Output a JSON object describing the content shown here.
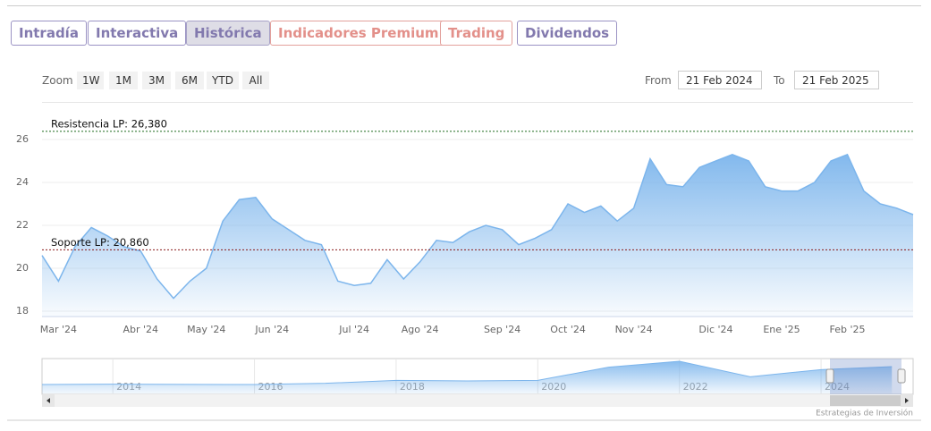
{
  "tabs": [
    "Intradía",
    "Interactiva",
    "Histórica",
    "Indicadores Premium",
    "Trading",
    "Dividendos"
  ],
  "zoom": {
    "label": "Zoom",
    "buttons": [
      "1W",
      "1M",
      "3M",
      "6M",
      "YTD",
      "All"
    ]
  },
  "range": {
    "from_label": "From",
    "from": "21 Feb 2024",
    "to_label": "To",
    "to": "21 Feb 2025"
  },
  "chart_data": {
    "type": "area",
    "color": "#7cb5ec",
    "categories": [
      null,
      "Mar '24",
      null,
      null,
      null,
      null,
      "Abr '24",
      null,
      null,
      null,
      "May '24",
      null,
      null,
      null,
      "Jun '24",
      null,
      null,
      null,
      null,
      "Jul '24",
      null,
      null,
      null,
      "Ago '24",
      null,
      null,
      null,
      null,
      "Sep '24",
      null,
      null,
      null,
      "Oct '24",
      null,
      null,
      null,
      "Nov '24",
      null,
      null,
      null,
      null,
      "Dic '24",
      null,
      null,
      null,
      "Ene '25",
      null,
      null,
      null,
      "Feb '25",
      null,
      null,
      null,
      null
    ],
    "values": [
      20.6,
      19.4,
      21.0,
      21.9,
      21.5,
      21.0,
      20.8,
      19.5,
      18.6,
      19.4,
      20.0,
      22.2,
      23.2,
      23.3,
      22.3,
      21.8,
      21.3,
      21.1,
      19.4,
      19.2,
      19.3,
      20.4,
      19.5,
      20.3,
      21.3,
      21.2,
      21.7,
      22.0,
      21.8,
      21.1,
      21.4,
      21.8,
      23.0,
      22.6,
      22.9,
      22.2,
      22.8,
      25.1,
      23.9,
      23.8,
      24.7,
      25.0,
      25.3,
      25.0,
      23.8,
      23.6,
      23.6,
      24.0,
      25.0,
      25.3,
      23.6,
      23.0,
      22.8,
      22.5
    ],
    "ylim": [
      17.75,
      27.5
    ],
    "yticks": [
      18,
      20,
      22,
      24,
      26
    ],
    "grid": true,
    "annotations": [
      {
        "label": "Resistencia LP: 26,380",
        "value": 26.38,
        "color": "#1f6b1f"
      },
      {
        "label": "Soporte LP: 20,860",
        "value": 20.86,
        "color": "#8b1a1a"
      }
    ]
  },
  "navigator": {
    "type": "area",
    "color": "#7cb5ec",
    "x": [
      2013,
      2014,
      2015,
      2016,
      2017,
      2018,
      2019,
      2020,
      2021,
      2022,
      2023,
      2024,
      2025
    ],
    "values": [
      7.5,
      7.8,
      7.6,
      7.5,
      8.5,
      11,
      10.5,
      11,
      22,
      27,
      14,
      20,
      22.5
    ],
    "xlim": [
      2013,
      2025.3
    ],
    "xticks": [
      2014,
      2016,
      2018,
      2020,
      2022,
      2024
    ]
  },
  "credits": "Estrategias de Inversión"
}
